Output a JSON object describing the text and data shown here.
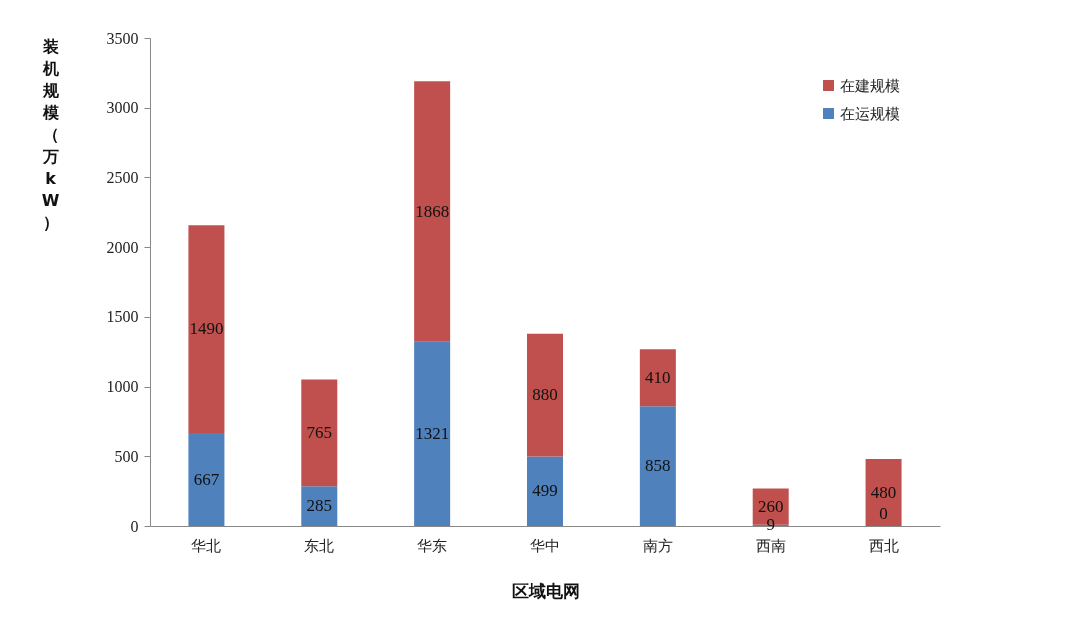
{
  "chart_data": {
    "type": "bar",
    "stacked": true,
    "xlabel": "区域电网",
    "ylabel": "装机规模（万kW）",
    "categories": [
      "华北",
      "东北",
      "华东",
      "华中",
      "南方",
      "西南",
      "西北"
    ],
    "series": [
      {
        "name": "在运规模",
        "color": "#4f81bd",
        "values": [
          667,
          285,
          1321,
          499,
          858,
          9,
          0
        ]
      },
      {
        "name": "在建规模",
        "color": "#c0504d",
        "values": [
          1490,
          765,
          1868,
          880,
          410,
          260,
          480
        ]
      }
    ],
    "ylim": [
      0,
      3500
    ],
    "yticks": [
      0,
      500,
      1000,
      1500,
      2000,
      2500,
      3000,
      3500
    ],
    "data_labels": true,
    "grid": false,
    "legend": "top right"
  }
}
